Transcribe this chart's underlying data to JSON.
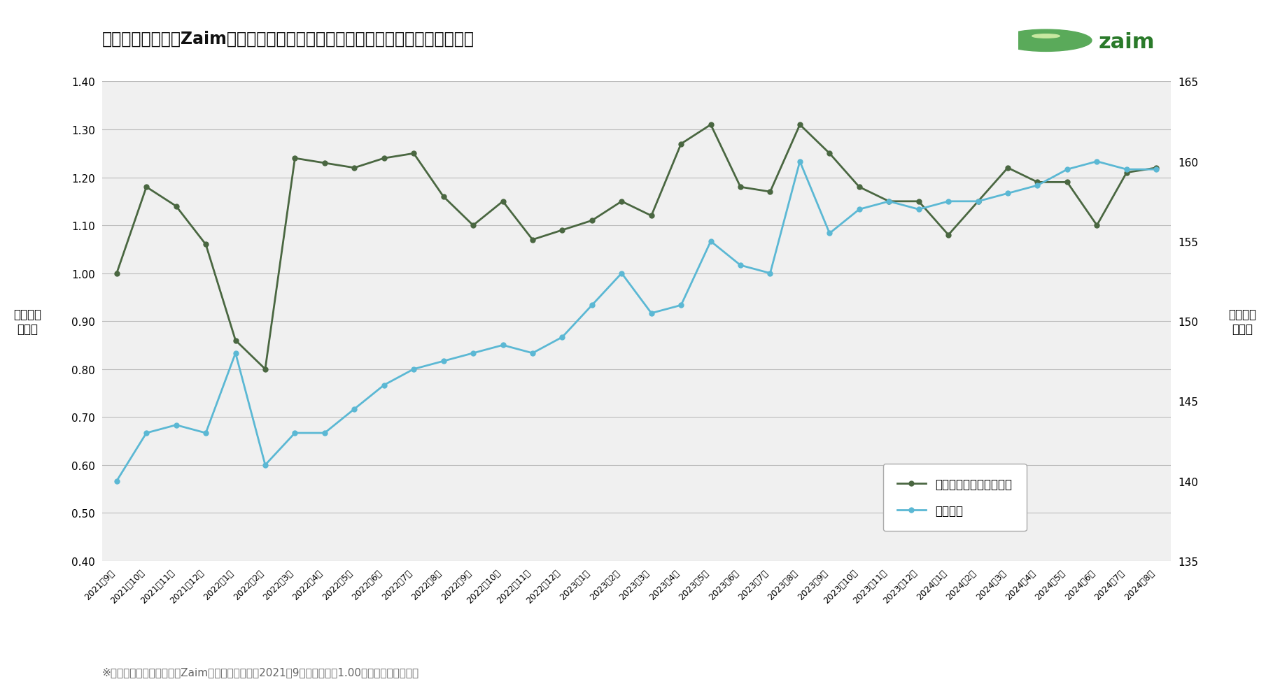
{
  "title": "家計簿サービス「Zaim」に記録された「おにぎり」の購入数と平均単価の推移",
  "footnote": "※「おにぎりの購入数」はZaimユーザーにおける2021年9月の購入数を1.00とした場合の変動比",
  "ylabel_left": "購入数の\n変動比",
  "ylabel_right": "平均単価\n（円）",
  "legend_green": "おにぎり購入数の変動比",
  "legend_blue": "平均単価",
  "background_color": "#ffffff",
  "plot_bg_color": "#f0f0f0",
  "x_labels": [
    "2021年9月",
    "2021年10月",
    "2021年11月",
    "2021年12月",
    "2022年1月",
    "2022年2月",
    "2022年3月",
    "2022年4月",
    "2022年5月",
    "2022年6月",
    "2022年7月",
    "2022年8月",
    "2022年9月",
    "2022年10月",
    "2022年11月",
    "2022年12月",
    "2023年1月",
    "2023年2月",
    "2023年3月",
    "2023年4月",
    "2023年5月",
    "2023年6月",
    "2023年7月",
    "2023年8月",
    "2023年9月",
    "2023年10月",
    "2023年11月",
    "2023年12月",
    "2024年1月",
    "2024年2月",
    "2024年3月",
    "2024年4月",
    "2024年5月",
    "2024年6月",
    "2024年7月",
    "2024年8月"
  ],
  "green_values": [
    1.0,
    1.18,
    1.14,
    1.06,
    0.86,
    0.8,
    1.24,
    1.23,
    1.22,
    1.24,
    1.25,
    1.16,
    1.1,
    1.15,
    1.07,
    1.09,
    1.11,
    1.15,
    1.12,
    1.27,
    1.31,
    1.18,
    1.17,
    1.31,
    1.25,
    1.18,
    1.15,
    1.15,
    1.08,
    1.15,
    1.22,
    1.19,
    1.19,
    1.1,
    1.21,
    1.22
  ],
  "blue_values": [
    140.0,
    143.0,
    143.5,
    143.0,
    148.0,
    141.0,
    143.0,
    143.0,
    144.5,
    146.0,
    147.0,
    147.5,
    148.0,
    148.5,
    148.0,
    149.0,
    151.0,
    153.0,
    150.5,
    151.0,
    155.0,
    153.5,
    153.0,
    160.0,
    155.5,
    157.0,
    157.5,
    157.0,
    157.5,
    157.5,
    158.0,
    158.5,
    159.5,
    160.0,
    159.5,
    159.5
  ],
  "green_color": "#4a6741",
  "blue_color": "#5bb8d4",
  "ylim_left": [
    0.4,
    1.4
  ],
  "ylim_right": [
    135,
    165
  ],
  "yticks_left": [
    0.4,
    0.5,
    0.6,
    0.7,
    0.8,
    0.9,
    1.0,
    1.1,
    1.2,
    1.3,
    1.4
  ],
  "yticks_right": [
    135,
    140,
    145,
    150,
    155,
    160,
    165
  ]
}
